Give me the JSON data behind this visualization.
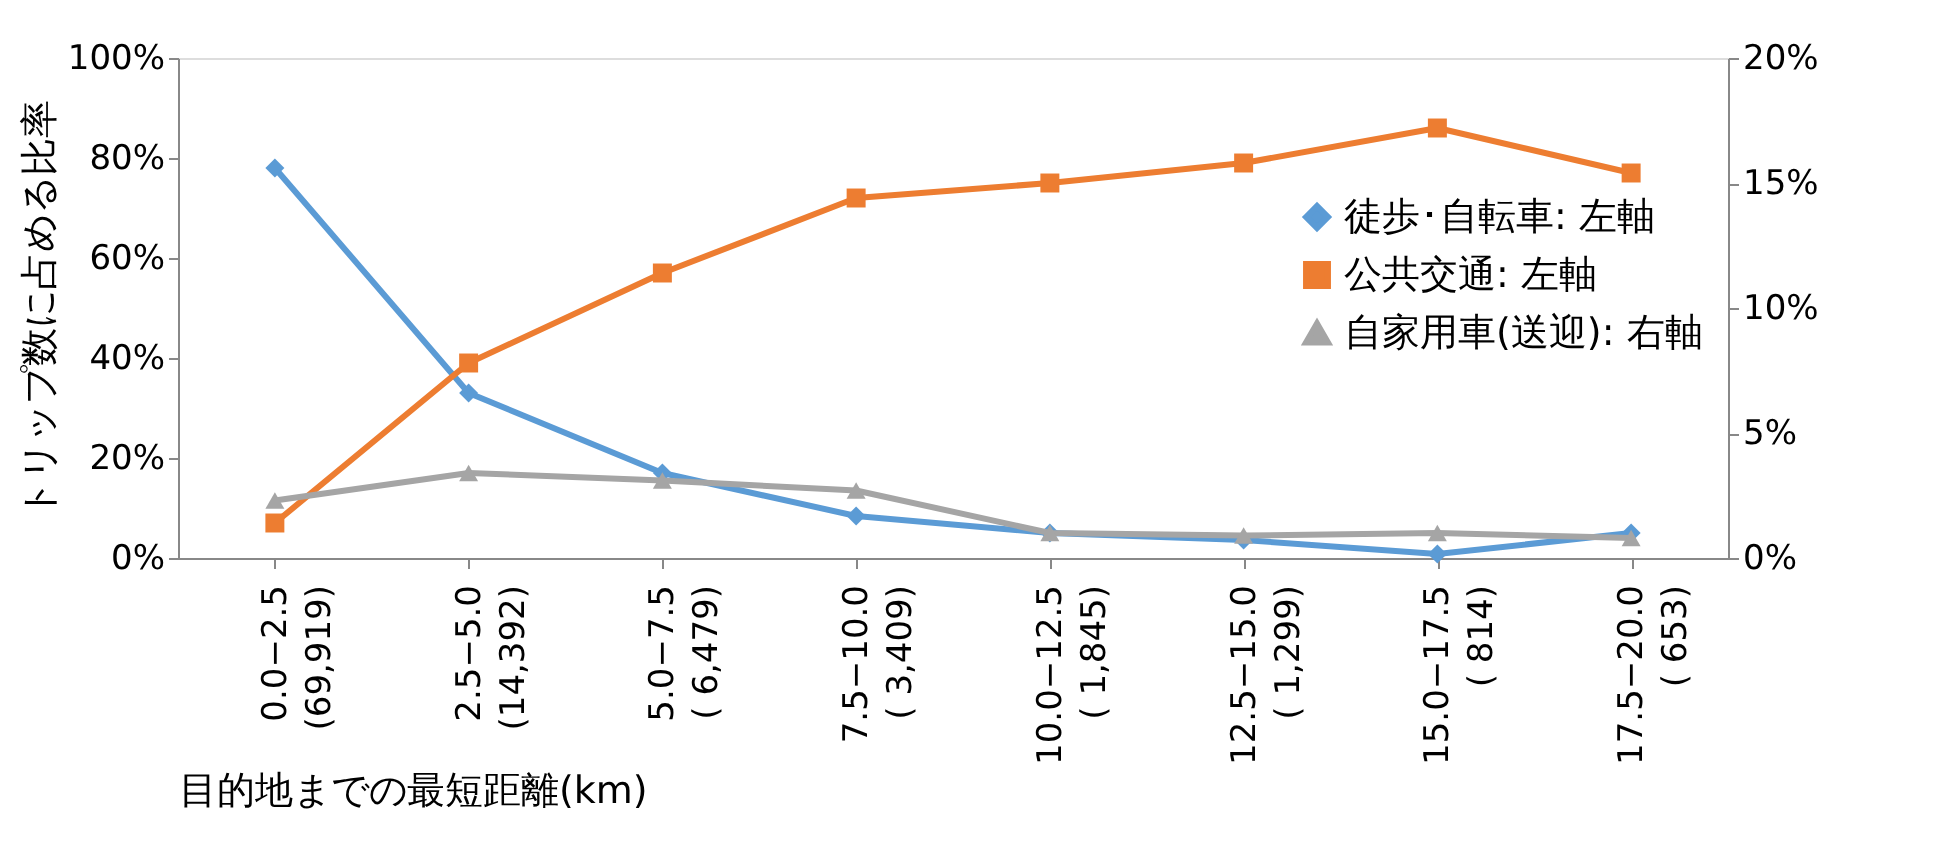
{
  "chart_data": {
    "type": "line",
    "xlabel": "目的地までの最短距離(km)",
    "ylabel": "トリップ数に占める比率",
    "categories": [
      "0.0−2.5\n(69,919)",
      "2.5−5.0\n(14,392)",
      "5.0−7.5\n( 6,479)",
      "7.5−10.0\n( 3,409)",
      "10.0−12.5\n( 1,845)",
      "12.5−15.0\n( 1,299)",
      "15.0−17.5\n(   814)",
      "17.5−20.0\n(   653)"
    ],
    "series": [
      {
        "name": "徒歩･自転車: 左軸",
        "color": "#5b9bd5",
        "marker": "diamond",
        "values": [
          78,
          33,
          17,
          8.4,
          5,
          3.6,
          0.8,
          5
        ]
      },
      {
        "name": "公共交通: 左軸",
        "color": "#ed7d31",
        "marker": "square",
        "values": [
          7,
          39,
          57,
          72,
          75,
          79,
          86,
          77
        ]
      },
      {
        "name": "自家用車(送迎): 右軸",
        "color": "#a5a5a5",
        "marker": "triangle",
        "axis": "y2",
        "values": [
          2.3,
          3.4,
          3.1,
          2.7,
          1.0,
          0.9,
          1.0,
          0.8
        ]
      }
    ],
    "ylim": [
      0,
      100
    ],
    "yticks": [
      {
        "value": 0,
        "label": "0%"
      },
      {
        "value": 20,
        "label": "20%"
      },
      {
        "value": 40,
        "label": "40%"
      },
      {
        "value": 60,
        "label": "60%"
      },
      {
        "value": 80,
        "label": "80%"
      },
      {
        "value": 100,
        "label": "100%"
      }
    ],
    "y2lim": [
      0,
      20
    ],
    "y2ticks": [
      {
        "value": 0,
        "label": "0%"
      },
      {
        "value": 5,
        "label": "5%"
      },
      {
        "value": 10,
        "label": "10%"
      },
      {
        "value": 15,
        "label": "15%"
      },
      {
        "value": 20,
        "label": "20%"
      }
    ],
    "grid": false,
    "legend": "right",
    "line_style": "solid"
  }
}
